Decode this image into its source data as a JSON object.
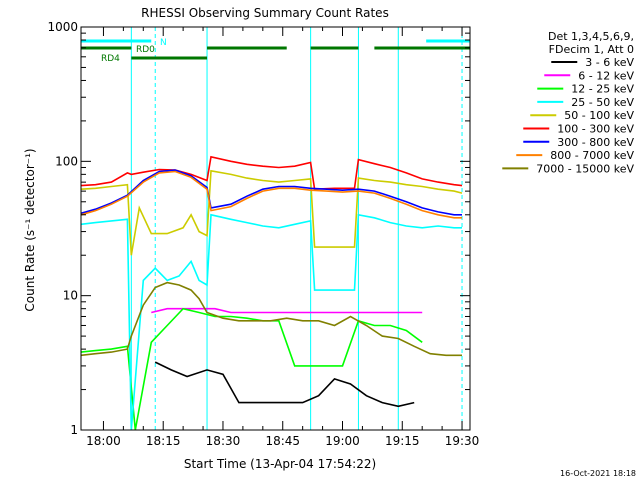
{
  "chart_data": {
    "type": "line",
    "title": "RHESSI Observing Summary Count Rates",
    "xlabel": "Start Time (13-Apr-04 17:54:22)",
    "ylabel": "Count Rate (s⁻¹ detector⁻¹)",
    "yscale": "log",
    "ylim": [
      1,
      1000
    ],
    "xlim": [
      "17:54:22",
      "19:32:00"
    ],
    "x_ticks": [
      "18:00",
      "18:15",
      "18:30",
      "18:45",
      "19:00",
      "19:15",
      "19:30"
    ],
    "y_ticks": [
      "1",
      "10",
      "100",
      "1000"
    ],
    "legend_header": [
      "Det 1,3,4,5,6,9,",
      "FDecim 1, Att 0"
    ],
    "legend_placement": "right",
    "footer_date": "16-Oct-2021 18:18",
    "flags": [
      {
        "label": "N",
        "color": "#00ffff",
        "segments": [
          [
            "17:54:22",
            "18:12"
          ],
          [
            "19:21",
            "19:32"
          ]
        ]
      },
      {
        "label": "RD0",
        "color": "#007700",
        "segments": [
          [
            "17:54:22",
            "18:07"
          ],
          [
            "18:26",
            "18:46"
          ],
          [
            "18:52",
            "19:04"
          ],
          [
            "19:08",
            "19:32"
          ]
        ]
      },
      {
        "label": "RD4",
        "color": "#007700",
        "segments": [
          [
            "18:07",
            "18:26"
          ]
        ]
      }
    ],
    "saa_lines_solid": [
      "17:54:22",
      "18:07",
      "18:26",
      "18:52",
      "19:04",
      "19:14"
    ],
    "saa_lines_dashed": [
      "18:13",
      "19:30"
    ],
    "series": [
      {
        "name": "3 - 6 keV",
        "color": "#000000",
        "x": [
          "18:13",
          "18:17",
          "18:21",
          "18:26",
          "18:30",
          "18:34",
          "18:38",
          "18:42",
          "18:46",
          "18:50",
          "18:54",
          "18:58",
          "19:02",
          "19:06",
          "19:10",
          "19:14",
          "19:18"
        ],
        "y": [
          3.2,
          2.8,
          2.5,
          2.8,
          2.6,
          1.6,
          1.6,
          1.6,
          1.6,
          1.6,
          1.8,
          2.4,
          2.2,
          1.8,
          1.6,
          1.5,
          1.6
        ]
      },
      {
        "name": "6 - 12 keV",
        "color": "#ff00ff",
        "x": [
          "18:12",
          "18:16",
          "18:20",
          "18:24",
          "18:28",
          "18:32",
          "18:36",
          "18:40",
          "18:44",
          "18:48",
          "18:52",
          "18:56",
          "19:00",
          "19:04",
          "19:08",
          "19:12",
          "19:16",
          "19:20"
        ],
        "y": [
          7.5,
          8.0,
          8.0,
          8.0,
          8.0,
          7.5,
          7.5,
          7.5,
          7.5,
          7.5,
          7.5,
          7.5,
          7.5,
          7.5,
          7.5,
          7.5,
          7.5,
          7.5
        ]
      },
      {
        "name": "12 - 25 keV",
        "color": "#00ff00",
        "x": [
          "17:54:22",
          "17:58",
          "18:02",
          "18:06",
          "18:08",
          "18:12",
          "18:16",
          "18:20",
          "18:24",
          "18:28",
          "18:32",
          "18:36",
          "18:40",
          "18:44",
          "18:48",
          "18:52",
          "18:56",
          "19:00",
          "19:04",
          "19:08",
          "19:12",
          "19:16",
          "19:20"
        ],
        "y": [
          3.8,
          3.9,
          4.0,
          4.2,
          1.0,
          4.5,
          6.0,
          8.0,
          7.5,
          7.0,
          7.0,
          6.8,
          6.5,
          6.5,
          3.0,
          3.0,
          3.0,
          3.0,
          6.5,
          6.0,
          6.0,
          5.5,
          4.5
        ]
      },
      {
        "name": "25 - 50 keV",
        "color": "#00ffff",
        "x": [
          "17:54:22",
          "17:58",
          "18:02",
          "18:06",
          "18:07",
          "18:10",
          "18:13",
          "18:16",
          "18:19",
          "18:22",
          "18:24",
          "18:26",
          "18:27",
          "18:32",
          "18:36",
          "18:40",
          "18:44",
          "18:48",
          "18:52",
          "18:53",
          "18:58",
          "19:03",
          "19:04",
          "19:08",
          "19:12",
          "19:16",
          "19:20",
          "19:24",
          "19:28",
          "19:30"
        ],
        "y": [
          34,
          35,
          36,
          37,
          1.0,
          13,
          16,
          13,
          14,
          18,
          13,
          12,
          40,
          37,
          35,
          33,
          32,
          34,
          36,
          11,
          11,
          11,
          40,
          38,
          35,
          33,
          32,
          33,
          32,
          32
        ]
      },
      {
        "name": "50 - 100 keV",
        "color": "#cccc00",
        "x": [
          "17:54:22",
          "17:58",
          "18:02",
          "18:06",
          "18:07",
          "18:09",
          "18:12",
          "18:16",
          "18:20",
          "18:22",
          "18:24",
          "18:26",
          "18:27",
          "18:32",
          "18:36",
          "18:40",
          "18:44",
          "18:48",
          "18:52",
          "18:53",
          "18:58",
          "19:03",
          "19:04",
          "19:08",
          "19:12",
          "19:16",
          "19:20",
          "19:24",
          "19:28",
          "19:30"
        ],
        "y": [
          62,
          63,
          65,
          67,
          20,
          45,
          29,
          29,
          32,
          40,
          30,
          28,
          85,
          80,
          75,
          72,
          70,
          72,
          74,
          23,
          23,
          23,
          75,
          72,
          70,
          67,
          65,
          62,
          60,
          58
        ]
      },
      {
        "name": "100 - 300 keV",
        "color": "#ff0000",
        "x": [
          "17:54:22",
          "17:58",
          "18:02",
          "18:06",
          "18:07",
          "18:10",
          "18:14",
          "18:18",
          "18:22",
          "18:26",
          "18:27",
          "18:32",
          "18:36",
          "18:40",
          "18:44",
          "18:48",
          "18:52",
          "18:53",
          "18:58",
          "19:03",
          "19:04",
          "19:08",
          "19:12",
          "19:16",
          "19:20",
          "19:24",
          "19:28",
          "19:30"
        ],
        "y": [
          66,
          67,
          70,
          82,
          80,
          83,
          87,
          86,
          80,
          72,
          108,
          100,
          95,
          92,
          90,
          92,
          98,
          62,
          63,
          63,
          103,
          96,
          90,
          82,
          74,
          70,
          67,
          66
        ]
      },
      {
        "name": "300 - 800 keV",
        "color": "#0000ff",
        "x": [
          "17:54:22",
          "17:58",
          "18:02",
          "18:06",
          "18:10",
          "18:14",
          "18:18",
          "18:22",
          "18:26",
          "18:27",
          "18:32",
          "18:36",
          "18:40",
          "18:44",
          "18:48",
          "18:52",
          "18:56",
          "19:00",
          "19:04",
          "19:08",
          "19:12",
          "19:16",
          "19:20",
          "19:24",
          "19:28",
          "19:30"
        ],
        "y": [
          41,
          44,
          49,
          56,
          72,
          84,
          86,
          78,
          64,
          45,
          48,
          55,
          62,
          65,
          65,
          63,
          62,
          61,
          62,
          60,
          55,
          50,
          45,
          42,
          40,
          40
        ]
      },
      {
        "name": "800 - 7000 keV",
        "color": "#ff8000",
        "x": [
          "17:54:22",
          "17:58",
          "18:02",
          "18:06",
          "18:10",
          "18:14",
          "18:18",
          "18:22",
          "18:26",
          "18:27",
          "18:32",
          "18:36",
          "18:40",
          "18:44",
          "18:48",
          "18:52",
          "18:56",
          "19:00",
          "19:04",
          "19:08",
          "19:12",
          "19:16",
          "19:20",
          "19:24",
          "19:28",
          "19:30"
        ],
        "y": [
          40,
          43,
          48,
          55,
          70,
          82,
          84,
          76,
          62,
          43,
          46,
          53,
          60,
          63,
          63,
          61,
          60,
          59,
          60,
          58,
          53,
          48,
          43,
          40,
          38,
          38
        ]
      },
      {
        "name": "7000 - 15000 keV",
        "color": "#808000",
        "x": [
          "17:54:22",
          "17:58",
          "18:02",
          "18:06",
          "18:07",
          "18:10",
          "18:13",
          "18:16",
          "18:19",
          "18:22",
          "18:24",
          "18:26",
          "18:30",
          "18:34",
          "18:38",
          "18:42",
          "18:46",
          "18:50",
          "18:54",
          "18:58",
          "19:02",
          "19:06",
          "19:10",
          "19:14",
          "19:18",
          "19:22",
          "19:26",
          "19:30"
        ],
        "y": [
          3.6,
          3.7,
          3.8,
          4.0,
          5.0,
          8.5,
          11.5,
          12.5,
          12.0,
          11.0,
          9.5,
          7.5,
          6.8,
          6.5,
          6.5,
          6.5,
          6.8,
          6.5,
          6.5,
          6.0,
          7.0,
          6.0,
          5.0,
          4.8,
          4.2,
          3.7,
          3.6,
          3.6
        ]
      }
    ]
  }
}
